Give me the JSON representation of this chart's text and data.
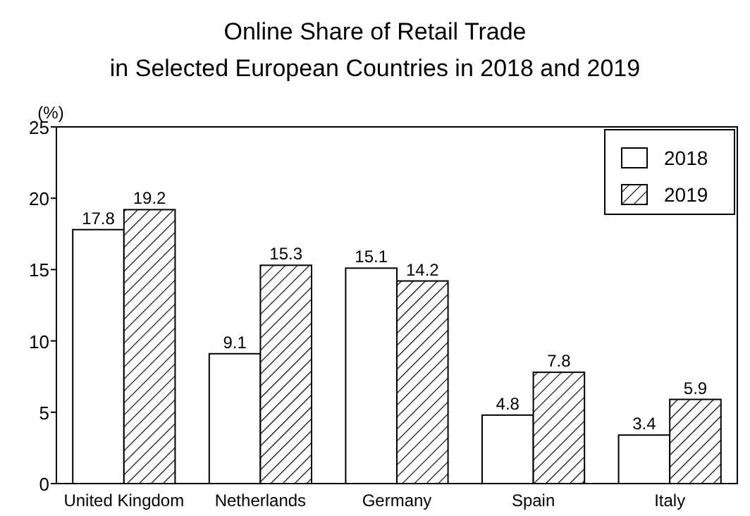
{
  "chart_data": {
    "type": "bar",
    "title": "Online Share of Retail Trade\nin Selected European Countries in 2018 and 2019",
    "ylabel": "(%)",
    "categories": [
      "United Kingdom",
      "Netherlands",
      "Germany",
      "Spain",
      "Italy"
    ],
    "series": [
      {
        "name": "2018",
        "color": "#ffffff",
        "values": [
          17.8,
          9.1,
          15.1,
          4.8,
          3.4
        ]
      },
      {
        "name": "2019",
        "color": "#000000",
        "values": [
          19.2,
          15.3,
          14.2,
          7.8,
          5.9
        ]
      }
    ],
    "ylim": [
      0,
      25
    ],
    "yticks": [
      0,
      5,
      10,
      15,
      20,
      25
    ],
    "data_labels": true,
    "legend": "top right",
    "grid": false
  }
}
